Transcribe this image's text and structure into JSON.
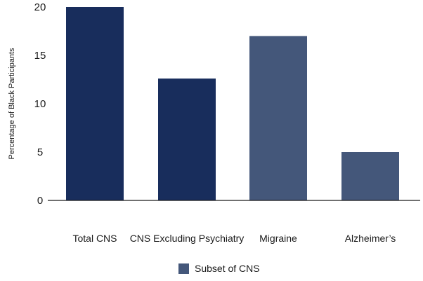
{
  "chart_data": {
    "type": "bar",
    "categories": [
      "Total CNS",
      "CNS Excluding Psychiatry",
      "Migraine",
      "Alzheimer’s"
    ],
    "values": [
      20,
      12.6,
      17,
      5
    ],
    "bar_colors": [
      "#182d5c",
      "#182d5c",
      "#44577a",
      "#44577a"
    ],
    "title": "",
    "xlabel": "",
    "ylabel": "Percentage of Black Participants",
    "ylim": [
      0,
      20
    ],
    "yticks": [
      0,
      5,
      10,
      15,
      20
    ],
    "ytick_labels": [
      "0",
      "5",
      "10",
      "15",
      "20"
    ],
    "grid": false,
    "legend": {
      "placement": "bottom-center",
      "entries": [
        {
          "label": "Subset of CNS",
          "color": "#44577a"
        }
      ]
    }
  }
}
